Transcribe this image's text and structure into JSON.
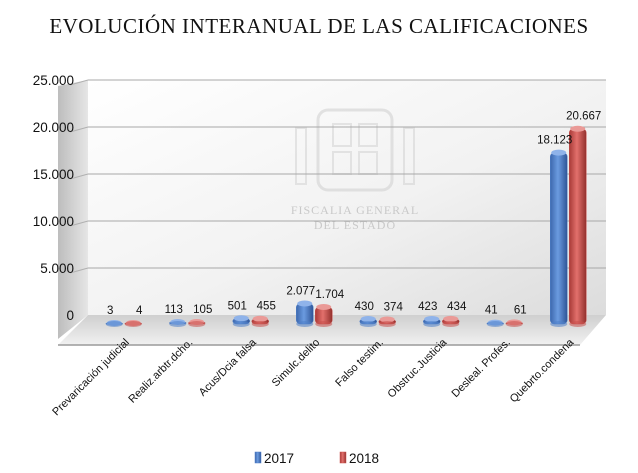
{
  "chart_data": {
    "type": "bar",
    "title": "EVOLUCIÓN INTERANUAL DE LAS CALIFICACIONES",
    "xlabel": "",
    "ylabel": "",
    "ylim": [
      0,
      25000
    ],
    "yticks": [
      0,
      5000,
      10000,
      15000,
      20000,
      25000
    ],
    "ytick_labels": [
      "0",
      "5.000",
      "10.000",
      "15.000",
      "20.000",
      "25.000"
    ],
    "grid": true,
    "legend_position": "bottom",
    "categories": [
      "Prevaricación judicial",
      "Realiz.arbtr.dcho.",
      "Acus/Dcia falsa",
      "Simulc.delito",
      "Falso testim.",
      "Obstruc.Justicia",
      "Desleal. Profes.",
      "Quebrto.condena"
    ],
    "series": [
      {
        "name": "2017",
        "color": "#4f7fc8",
        "values": [
          3,
          113,
          501,
          2077,
          430,
          423,
          41,
          18123
        ],
        "labels": [
          "3",
          "113",
          "501",
          "2.077",
          "430",
          "423",
          "41",
          "18.123"
        ]
      },
      {
        "name": "2018",
        "color": "#c9504d",
        "values": [
          4,
          105,
          455,
          1704,
          374,
          434,
          61,
          20667
        ],
        "labels": [
          "4",
          "105",
          "455",
          "1.704",
          "374",
          "434",
          "61",
          "20.667"
        ]
      }
    ]
  },
  "watermark": {
    "line1": "FISCALIA GENERAL",
    "line2": "DEL ESTADO"
  }
}
